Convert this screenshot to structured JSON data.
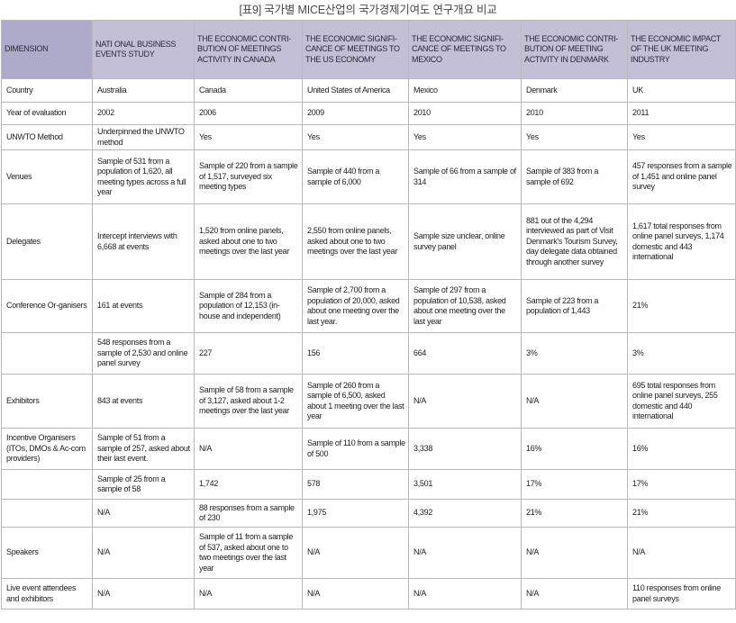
{
  "title": "[표9] 국가별 MICE산업의 국가경제기여도 연구개요 비교",
  "headers": [
    "DIMENSION",
    "NATI ONAL BUSINESS EVENTS STUDY",
    "THE ECONOMIC CONTRI-BUTION OF MEETINGS ACTIVITY IN CANADA",
    "THE ECONOMIC SIGNIFI-CANCE OF MEETINGS TO THE US ECONOMY",
    "THE ECONOMIC SIGNIFI-CANCE OF MEETINGS TO MEXICO",
    "THE ECONOMIC CONTRI-BUTION OF MEETING ACTIVITY IN DENMARK",
    "THE ECONOMIC IMPACT OF THE UK MEETING INDUSTRY"
  ],
  "rows": [
    [
      "Country",
      "Australia",
      "Canada",
      "United States of America",
      "Mexico",
      "Denmark",
      "UK"
    ],
    [
      "Year of evaluation",
      "2002",
      "2006",
      "2009",
      "2010",
      "2010",
      "2011"
    ],
    [
      "UNWTO Method",
      "Underpinned the UNWTO method",
      "Yes",
      "Yes",
      "Yes",
      "Yes",
      "Yes"
    ],
    [
      "Venues",
      "Sample of 531 from a population of 1,620, all meeting types across a full year",
      "Sample of 220 from a sample of 1,517, surveyed six meeting types",
      "Sample of 440 from a sample of 6,000",
      "Sample of 66 from a sample of 314",
      "Sample of 383 from a sample of 692",
      "457 responses from a sample of 1,451 and online panel survey"
    ],
    [
      "Delegates",
      "Intercept interviews with 6,668 at events",
      "1,520 from online panels, asked about one to two meetings over the last year",
      "2,550 from online panels, asked about one to two meetings over the last year",
      "Sample size unclear, online survey panel",
      "881 out of the 4,294 interviewed as part of Visit Denmark's Tourism Survey, day delegate data obtained through another survey",
      "1,617 total responses from online panel surveys, 1,174 domestic and 443 international"
    ],
    [
      "Conference Or-ganisers",
      "161 at events",
      "Sample of 284 from a population of 12,153 (in-house and independent)",
      "Sample of 2,700 from a population of 20,000, asked about one meeting over the last year.",
      "Sample of 297 from a population of 10,538, asked about one meeting over the last year",
      "Sample of 223 from a population of 1,443",
      "21%"
    ],
    [
      "",
      "548 responses from a sample of 2,530 and online panel survey",
      "227",
      "156",
      "664",
      "3%",
      "3%"
    ],
    [
      "Exhibitors",
      "843 at events",
      "Sample of 58 from a sample of 3,127, asked about 1-2 meetings over the last year",
      "Sample of 260 from a sample of 6,500, asked about 1 meeting over the last year",
      "N/A",
      "N/A",
      "695 total responses from online panel surveys, 255 domestic and 440 international"
    ],
    [
      "Incentive Organisers (ITOs, DMOs & Ac-com providers)",
      "Sample of 51 from a sample of 257, asked about their last event.",
      "N/A",
      "Sample of 110 from a sample of 500",
      "3,338",
      "16%",
      "16%"
    ],
    [
      "",
      "Sample of 25 from a sample of 58",
      "1,742",
      "578",
      "3,501",
      "17%",
      "17%"
    ],
    [
      "",
      "N/A",
      "88 responses from a sample of 230",
      "1,975",
      "4,392",
      "21%",
      "21%"
    ],
    [
      "Speakers",
      "N/A",
      "Sample of 11 from a sample of 537, asked about one to two meetings over the last year",
      "N/A",
      "N/A",
      "N/A",
      "N/A"
    ],
    [
      "Live event attendees and exhibitors",
      "N/A",
      "N/A",
      "N/A",
      "N/A",
      "N/A",
      "110 responses from online panel surveys"
    ]
  ]
}
